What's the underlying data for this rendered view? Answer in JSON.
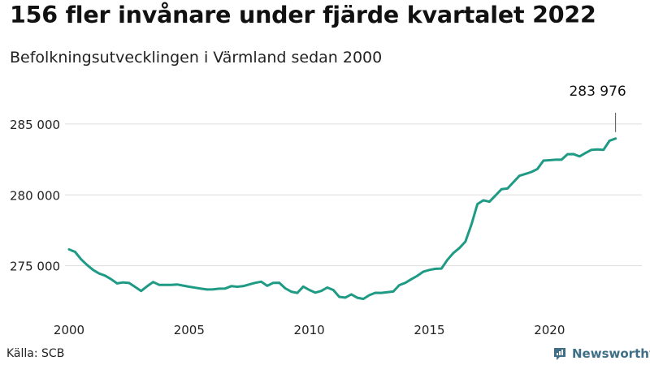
{
  "header": {
    "title": "156 fler invånare under fjärde kvartalet 2022",
    "subtitle": "Befolkningsutvecklingen i Värmland sedan 2000"
  },
  "footer": {
    "source": "Källa: SCB",
    "brand": "Newsworthy"
  },
  "colors": {
    "line": "#1f9a85",
    "grid": "#dddddd",
    "text": "#111111",
    "brand": "#3f6f86"
  },
  "chart_data": {
    "type": "line",
    "ylim": [
      272000,
      287000
    ],
    "xlim": [
      2000,
      2023
    ],
    "yticks": [
      {
        "value": 275000,
        "label": "275 000"
      },
      {
        "value": 280000,
        "label": "280 000"
      },
      {
        "value": 285000,
        "label": "285 000"
      }
    ],
    "xticks": [
      {
        "value": 2000,
        "label": "2000"
      },
      {
        "value": 2005,
        "label": "2005"
      },
      {
        "value": 2010,
        "label": "2010"
      },
      {
        "value": 2015,
        "label": "2015"
      },
      {
        "value": 2020,
        "label": "2020"
      }
    ],
    "grid": true,
    "annotation": {
      "label": "283 976",
      "x": 2022.75,
      "y": 283976
    },
    "x": [
      2000.0,
      2000.25,
      2000.5,
      2000.75,
      2001.0,
      2001.25,
      2001.5,
      2001.75,
      2002.0,
      2002.25,
      2002.5,
      2002.75,
      2003.0,
      2003.25,
      2003.5,
      2003.75,
      2004.0,
      2004.25,
      2004.5,
      2004.75,
      2005.0,
      2005.25,
      2005.5,
      2005.75,
      2006.0,
      2006.25,
      2006.5,
      2006.75,
      2007.0,
      2007.25,
      2007.5,
      2007.75,
      2008.0,
      2008.25,
      2008.5,
      2008.75,
      2009.0,
      2009.25,
      2009.5,
      2009.75,
      2010.0,
      2010.25,
      2010.5,
      2010.75,
      2011.0,
      2011.25,
      2011.5,
      2011.75,
      2012.0,
      2012.25,
      2012.5,
      2012.75,
      2013.0,
      2013.25,
      2013.5,
      2013.75,
      2014.0,
      2014.25,
      2014.5,
      2014.75,
      2015.0,
      2015.25,
      2015.5,
      2015.75,
      2016.0,
      2016.25,
      2016.5,
      2016.75,
      2017.0,
      2017.25,
      2017.5,
      2017.75,
      2018.0,
      2018.25,
      2018.5,
      2018.75,
      2019.0,
      2019.25,
      2019.5,
      2019.75,
      2020.0,
      2020.25,
      2020.5,
      2020.75,
      2021.0,
      2021.25,
      2021.5,
      2021.75,
      2022.0,
      2022.25,
      2022.5,
      2022.75
    ],
    "series": [
      {
        "values": [
          276150,
          275980,
          275450,
          275050,
          274700,
          274450,
          274300,
          274050,
          273750,
          273820,
          273780,
          273500,
          273220,
          273550,
          273850,
          273650,
          273650,
          273650,
          273680,
          273600,
          273520,
          273450,
          273380,
          273320,
          273330,
          273380,
          273390,
          273560,
          273520,
          273560,
          273680,
          273790,
          273870,
          273580,
          273790,
          273800,
          273400,
          273170,
          273080,
          273530,
          273290,
          273100,
          273220,
          273460,
          273290,
          272800,
          272750,
          272980,
          272740,
          272660,
          272920,
          273090,
          273080,
          273130,
          273180,
          273630,
          273790,
          274050,
          274290,
          274580,
          274700,
          274780,
          274800,
          275420,
          275900,
          276250,
          276700,
          277900,
          279350,
          279620,
          279520,
          279950,
          280400,
          280450,
          280900,
          281350,
          281480,
          281620,
          281830,
          282420,
          282450,
          282480,
          282480,
          282870,
          282880,
          282720,
          282960,
          283180,
          283210,
          283180,
          283820,
          283976
        ]
      }
    ]
  }
}
